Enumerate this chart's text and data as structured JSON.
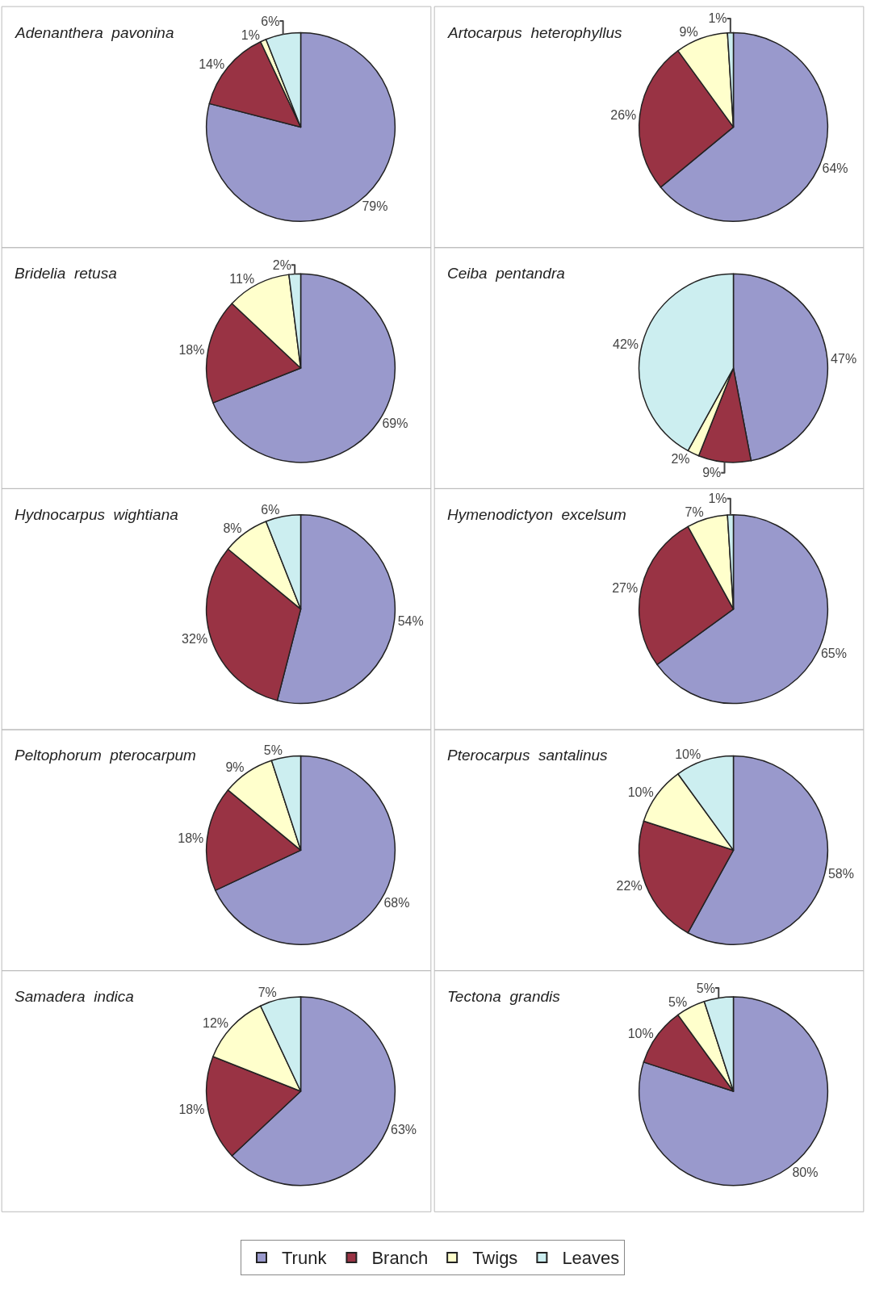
{
  "chart_data": [
    {
      "type": "pie",
      "title": "Adenanthera  pavonina",
      "categories": [
        "Trunk",
        "Branch",
        "Twigs",
        "Leaves"
      ],
      "values": [
        79,
        14,
        1,
        6
      ],
      "value_labels": [
        "79%",
        "14%",
        "1%",
        "6%"
      ],
      "colors": [
        "#9999cc",
        "#993344",
        "#ffffcc",
        "#cceef0"
      ],
      "legend": "bottom"
    },
    {
      "type": "pie",
      "title": "Artocarpus  heterophyllus",
      "categories": [
        null,
        null,
        null,
        null
      ],
      "values": [
        64,
        26,
        9,
        1
      ],
      "value_labels": [
        "64%",
        "26%",
        "9%",
        "1%"
      ],
      "colors": [
        "#9999cc",
        "#993344",
        "#ffffcc",
        "#cceef0"
      ]
    },
    {
      "type": "pie",
      "title": "Bridelia  retusa",
      "categories": [
        null,
        null,
        null,
        null
      ],
      "values": [
        69,
        18,
        11,
        2
      ],
      "value_labels": [
        "69%",
        "18%",
        "11%",
        "2%"
      ],
      "colors": [
        "#9999cc",
        "#993344",
        "#ffffcc",
        "#cceef0"
      ]
    },
    {
      "type": "pie",
      "title": "Ceiba  pentandra",
      "categories": [
        null,
        null,
        null,
        null
      ],
      "values": [
        47,
        9,
        2,
        42
      ],
      "value_labels": [
        "47%",
        "9%",
        "2%",
        "42%"
      ],
      "colors": [
        "#9999cc",
        "#993344",
        "#ffffcc",
        "#cceef0"
      ]
    },
    {
      "type": "pie",
      "title": "Hydnocarpus  wightiana",
      "categories": [
        null,
        null,
        null,
        null
      ],
      "values": [
        54,
        32,
        8,
        6
      ],
      "value_labels": [
        "54%",
        "32%",
        "8%",
        "6%"
      ],
      "colors": [
        "#9999cc",
        "#993344",
        "#ffffcc",
        "#cceef0"
      ]
    },
    {
      "type": "pie",
      "title": "Hymenodictyon  excelsum",
      "categories": [
        null,
        null,
        null,
        null
      ],
      "values": [
        65,
        27,
        7,
        1
      ],
      "value_labels": [
        "65%",
        "27%",
        "7%",
        "1%"
      ],
      "colors": [
        "#9999cc",
        "#993344",
        "#ffffcc",
        "#cceef0"
      ]
    },
    {
      "type": "pie",
      "title": "Peltophorum  pterocarpum",
      "categories": [
        null,
        null,
        null,
        null
      ],
      "values": [
        68,
        18,
        9,
        5
      ],
      "value_labels": [
        "68%",
        "18%",
        "9%",
        "5%"
      ],
      "colors": [
        "#9999cc",
        "#993344",
        "#ffffcc",
        "#cceef0"
      ]
    },
    {
      "type": "pie",
      "title": "Pterocarpus  santalinus",
      "categories": [
        null,
        null,
        null,
        null
      ],
      "values": [
        58,
        22,
        10,
        10
      ],
      "value_labels": [
        "58%",
        "22%",
        "10%",
        "10%"
      ],
      "colors": [
        "#9999cc",
        "#993344",
        "#ffffcc",
        "#cceef0"
      ]
    },
    {
      "type": "pie",
      "title": "Samadera  indica",
      "categories": [
        null,
        null,
        null,
        null
      ],
      "values": [
        63,
        18,
        12,
        7
      ],
      "value_labels": [
        "63%",
        "18%",
        "12%",
        "7%"
      ],
      "colors": [
        "#9999cc",
        "#993344",
        "#ffffcc",
        "#cceef0"
      ]
    },
    {
      "type": "pie",
      "title": "Tectona  grandis",
      "categories": [
        null,
        null,
        null,
        null
      ],
      "values": [
        80,
        10,
        5,
        5
      ],
      "value_labels": [
        "80%",
        "10%",
        "5%",
        "5%"
      ],
      "colors": [
        "#9999cc",
        "#993344",
        "#ffffcc",
        "#cceef0"
      ]
    }
  ]
}
